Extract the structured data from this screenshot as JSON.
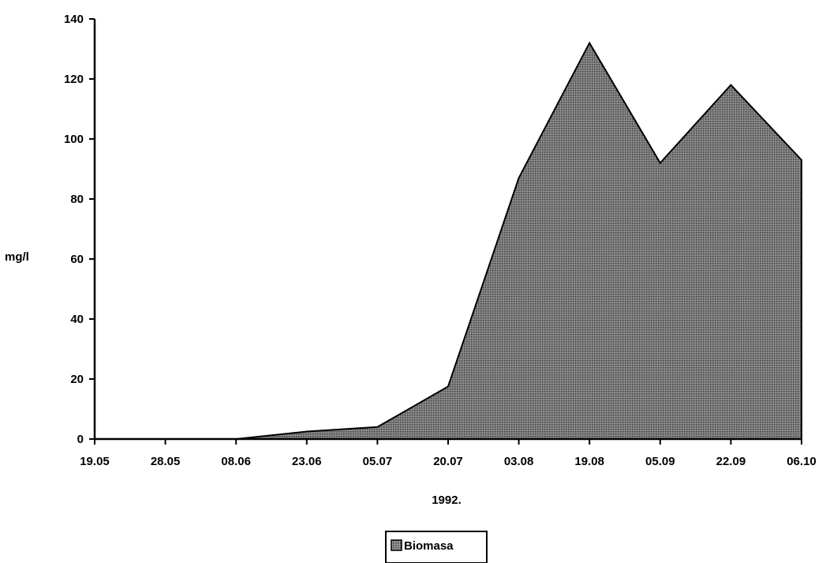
{
  "chart_data": {
    "type": "area",
    "x": [
      "19.05",
      "28.05",
      "08.06",
      "23.06",
      "05.07",
      "20.07",
      "03.08",
      "19.08",
      "05.09",
      "22.09",
      "06.10"
    ],
    "series": [
      {
        "name": "Biomasa",
        "values": [
          0,
          0,
          0,
          2.5,
          4,
          17.5,
          87,
          132,
          92,
          118,
          93
        ]
      }
    ],
    "ylabel": "mg/l",
    "xlabel": "1992.",
    "ylim": [
      0,
      140
    ],
    "yticks": [
      0,
      20,
      40,
      60,
      80,
      100,
      120,
      140
    ],
    "grid": false,
    "legend": "bottom-center",
    "colors": {
      "fill_base": "#8a8a8a",
      "fill_dot": "#3a3a3a",
      "stroke": "#000000"
    }
  }
}
